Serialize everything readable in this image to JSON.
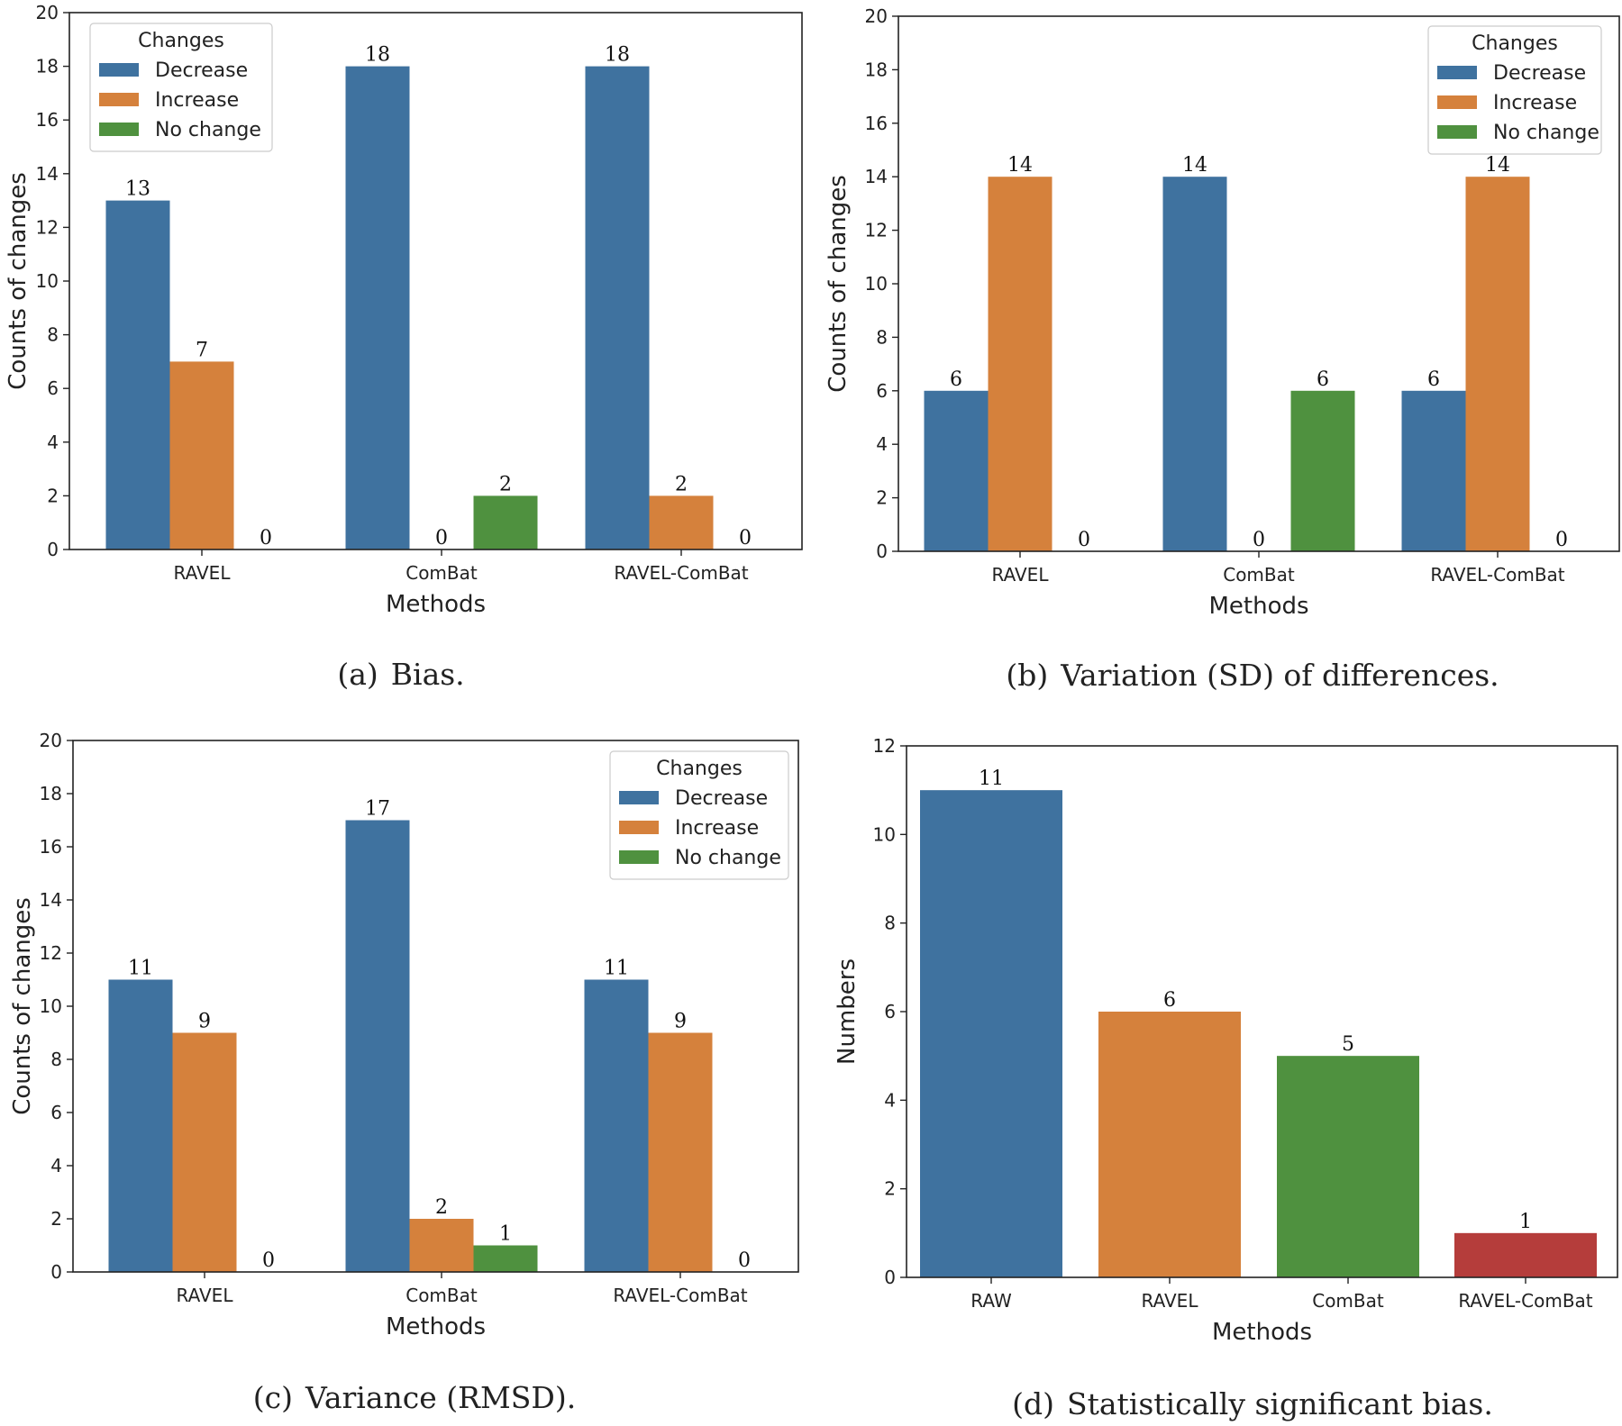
{
  "colors": {
    "Decrease": "#3f729f",
    "Increase": "#d5813c",
    "No change": "#4f913f",
    "RAVEL-ComBat": "#b53d3b"
  },
  "chart_data": [
    {
      "id": "a",
      "type": "bar",
      "caption_letter": "(a)",
      "caption_text": "Bias.",
      "categories": [
        "RAVEL",
        "ComBat",
        "RAVEL-ComBat"
      ],
      "series": [
        {
          "name": "Decrease",
          "values": [
            13,
            18,
            18
          ]
        },
        {
          "name": "Increase",
          "values": [
            7,
            0,
            2
          ]
        },
        {
          "name": "No change",
          "values": [
            0,
            2,
            0
          ]
        }
      ],
      "xlabel": "Methods",
      "ylabel": "Counts of changes",
      "ylim": [
        0,
        20
      ],
      "yticks": [
        0,
        2,
        4,
        6,
        8,
        10,
        12,
        14,
        16,
        18,
        20
      ],
      "legend": {
        "title": "Changes",
        "position": "top-left",
        "entries": [
          "Decrease",
          "Increase",
          "No change"
        ]
      }
    },
    {
      "id": "b",
      "type": "bar",
      "caption_letter": "(b)",
      "caption_text": "Variation (SD) of differences.",
      "categories": [
        "RAVEL",
        "ComBat",
        "RAVEL-ComBat"
      ],
      "series": [
        {
          "name": "Decrease",
          "values": [
            6,
            14,
            6
          ]
        },
        {
          "name": "Increase",
          "values": [
            14,
            0,
            14
          ]
        },
        {
          "name": "No change",
          "values": [
            0,
            6,
            0
          ]
        }
      ],
      "xlabel": "Methods",
      "ylabel": "Counts of changes",
      "ylim": [
        0,
        20
      ],
      "yticks": [
        0,
        2,
        4,
        6,
        8,
        10,
        12,
        14,
        16,
        18,
        20
      ],
      "legend": {
        "title": "Changes",
        "position": "top-right",
        "entries": [
          "Decrease",
          "Increase",
          "No change"
        ]
      }
    },
    {
      "id": "c",
      "type": "bar",
      "caption_letter": "(c)",
      "caption_text": "Variance (RMSD).",
      "categories": [
        "RAVEL",
        "ComBat",
        "RAVEL-ComBat"
      ],
      "series": [
        {
          "name": "Decrease",
          "values": [
            11,
            17,
            11
          ]
        },
        {
          "name": "Increase",
          "values": [
            9,
            2,
            9
          ]
        },
        {
          "name": "No change",
          "values": [
            0,
            1,
            0
          ]
        }
      ],
      "xlabel": "Methods",
      "ylabel": "Counts of changes",
      "ylim": [
        0,
        20
      ],
      "yticks": [
        0,
        2,
        4,
        6,
        8,
        10,
        12,
        14,
        16,
        18,
        20
      ],
      "legend": {
        "title": "Changes",
        "position": "top-right",
        "entries": [
          "Decrease",
          "Increase",
          "No change"
        ]
      }
    },
    {
      "id": "d",
      "type": "bar",
      "caption_letter": "(d)",
      "caption_text": "Statistically significant bias.",
      "categories": [
        "RAW",
        "RAVEL",
        "ComBat",
        "RAVEL-ComBat"
      ],
      "values": [
        11,
        6,
        5,
        1
      ],
      "bar_colors": [
        "Decrease",
        "Increase",
        "No change",
        "RAVEL-ComBat"
      ],
      "xlabel": "Methods",
      "ylabel": "Numbers",
      "ylim": [
        0,
        12
      ],
      "yticks": [
        0,
        2,
        4,
        6,
        8,
        10,
        12
      ]
    }
  ]
}
